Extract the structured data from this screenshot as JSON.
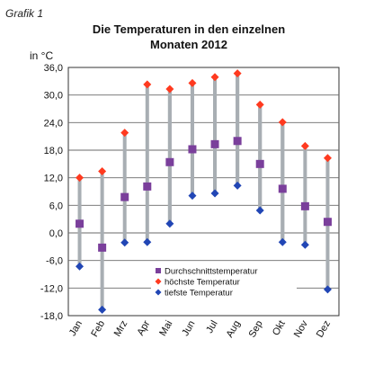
{
  "header": {
    "grafik_label": "Grafik 1",
    "title_line1": "Die Temperaturen in den einzelnen",
    "title_line2": "Monaten 2012",
    "unit_label": "in °C"
  },
  "colors": {
    "avg": "#7a3f9b",
    "max": "#ff3a1f",
    "min": "#2146b5",
    "range_bar": "#a8aeb3",
    "grid": "#6a6a6a"
  },
  "chart_data": {
    "type": "scatter",
    "title": "Die Temperaturen in den einzelnen Monaten 2012",
    "ylabel": "in °C",
    "ylim": [
      -18,
      36
    ],
    "yticks": [
      "36,0",
      "30,0",
      "24,0",
      "18,0",
      "12,0",
      "6,0",
      "0,0",
      "-6,0",
      "-12,0",
      "-18,0"
    ],
    "ytick_values": [
      36,
      30,
      24,
      18,
      12,
      6,
      0,
      -6,
      -12,
      -18
    ],
    "grid": true,
    "legend_position": "bottom-center",
    "categories": [
      "Jan",
      "Feb",
      "Mrz",
      "Apr",
      "Mai",
      "Jun",
      "Jul",
      "Aug",
      "Sep",
      "Okt",
      "Nov",
      "Dez"
    ],
    "series": [
      {
        "name": "Durchschnittstemperatur",
        "marker": "square",
        "color": "#7a3f9b",
        "values": [
          2.0,
          -3.2,
          7.8,
          10.1,
          15.4,
          18.2,
          19.3,
          20.0,
          15.0,
          9.6,
          5.8,
          2.4
        ]
      },
      {
        "name": "höchste Temperatur",
        "marker": "diamond",
        "color": "#ff3a1f",
        "values": [
          12.0,
          13.4,
          21.8,
          32.3,
          31.3,
          32.6,
          33.9,
          34.7,
          27.9,
          24.1,
          18.9,
          16.3
        ]
      },
      {
        "name": "tiefste Temperatur",
        "marker": "diamond",
        "color": "#2146b5",
        "values": [
          -7.3,
          -16.7,
          -2.1,
          -2.0,
          2.0,
          8.1,
          8.6,
          10.3,
          4.9,
          -2.0,
          -2.6,
          -12.3
        ]
      }
    ]
  }
}
